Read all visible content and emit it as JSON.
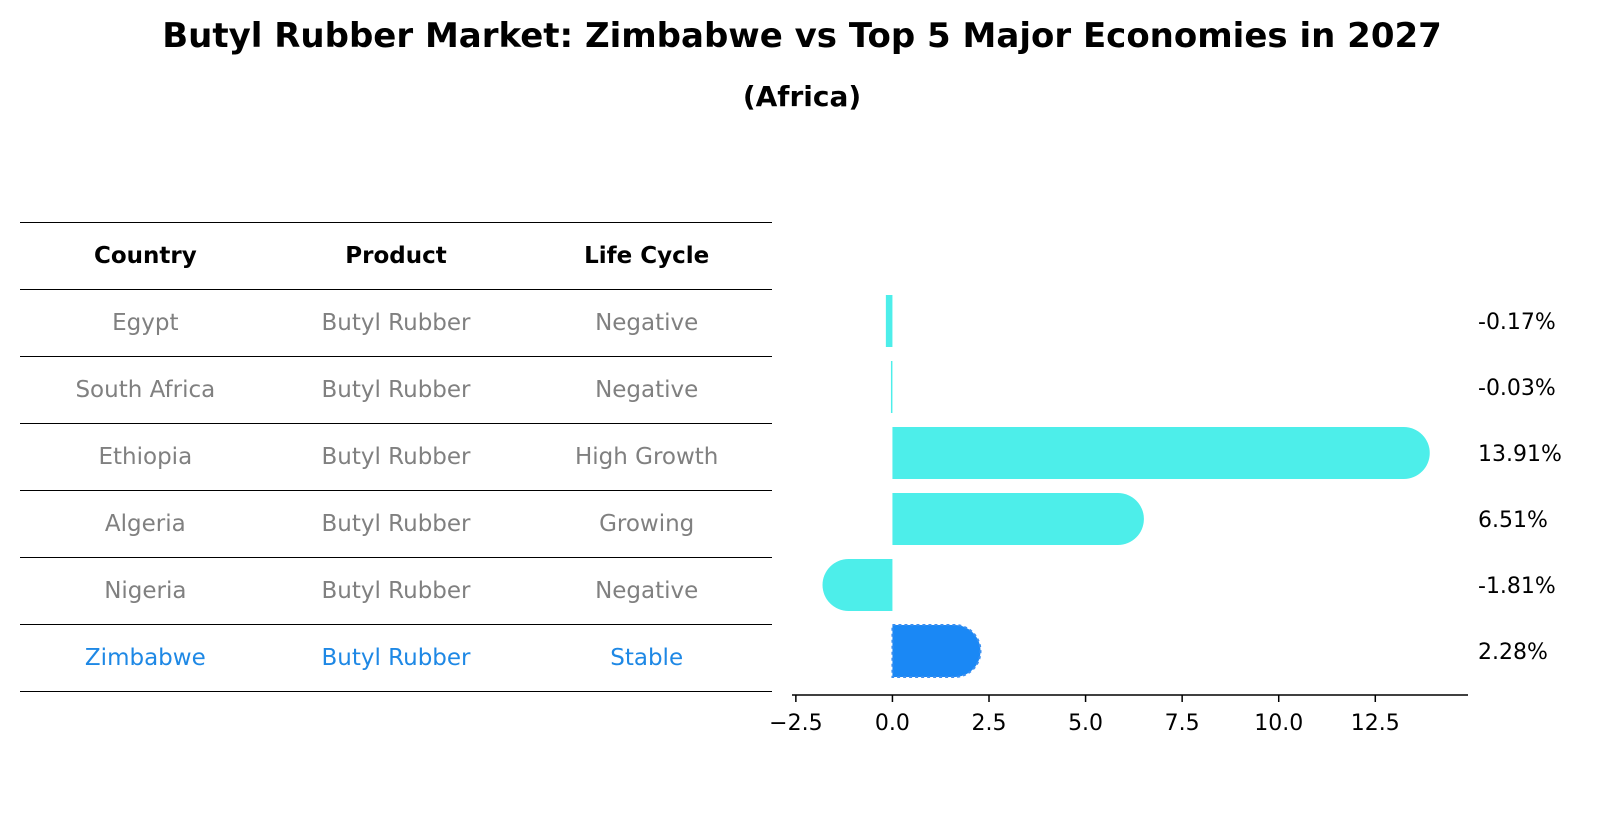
{
  "title": "Butyl Rubber Market: Zimbabwe vs Top 5 Major Economies in 2027",
  "subtitle": "(Africa)",
  "table": {
    "headers": [
      "Country",
      "Product",
      "Life Cycle"
    ],
    "rows": [
      [
        "Egypt",
        "Butyl Rubber",
        "Negative"
      ],
      [
        "South Africa",
        "Butyl Rubber",
        "Negative"
      ],
      [
        "Ethiopia",
        "Butyl Rubber",
        "High Growth"
      ],
      [
        "Algeria",
        "Butyl Rubber",
        "Growing"
      ],
      [
        "Nigeria",
        "Butyl Rubber",
        "Negative"
      ],
      [
        "Zimbabwe",
        "Butyl Rubber",
        "Stable"
      ]
    ],
    "highlight_row": 5
  },
  "chart_data": {
    "type": "bar",
    "orientation": "horizontal",
    "categories": [
      "Egypt",
      "South Africa",
      "Ethiopia",
      "Algeria",
      "Nigeria",
      "Zimbabwe"
    ],
    "values": [
      -0.17,
      -0.03,
      13.91,
      6.51,
      -1.81,
      2.28
    ],
    "value_labels": [
      "-0.17%",
      "-0.03%",
      "13.91%",
      "6.51%",
      "-1.81%",
      "2.28%"
    ],
    "highlight_index": 5,
    "xlim": [
      -2.6,
      14.9
    ],
    "xticks": [
      -2.5,
      0.0,
      2.5,
      5.0,
      7.5,
      10.0,
      12.5
    ],
    "xtick_labels": [
      "−2.5",
      "0.0",
      "2.5",
      "5.0",
      "7.5",
      "10.0",
      "12.5"
    ],
    "colors": {
      "bar": "#4deeea",
      "highlight": "#1a88f5",
      "text_muted": "#808080",
      "text_highlight": "#1e88e5"
    }
  }
}
